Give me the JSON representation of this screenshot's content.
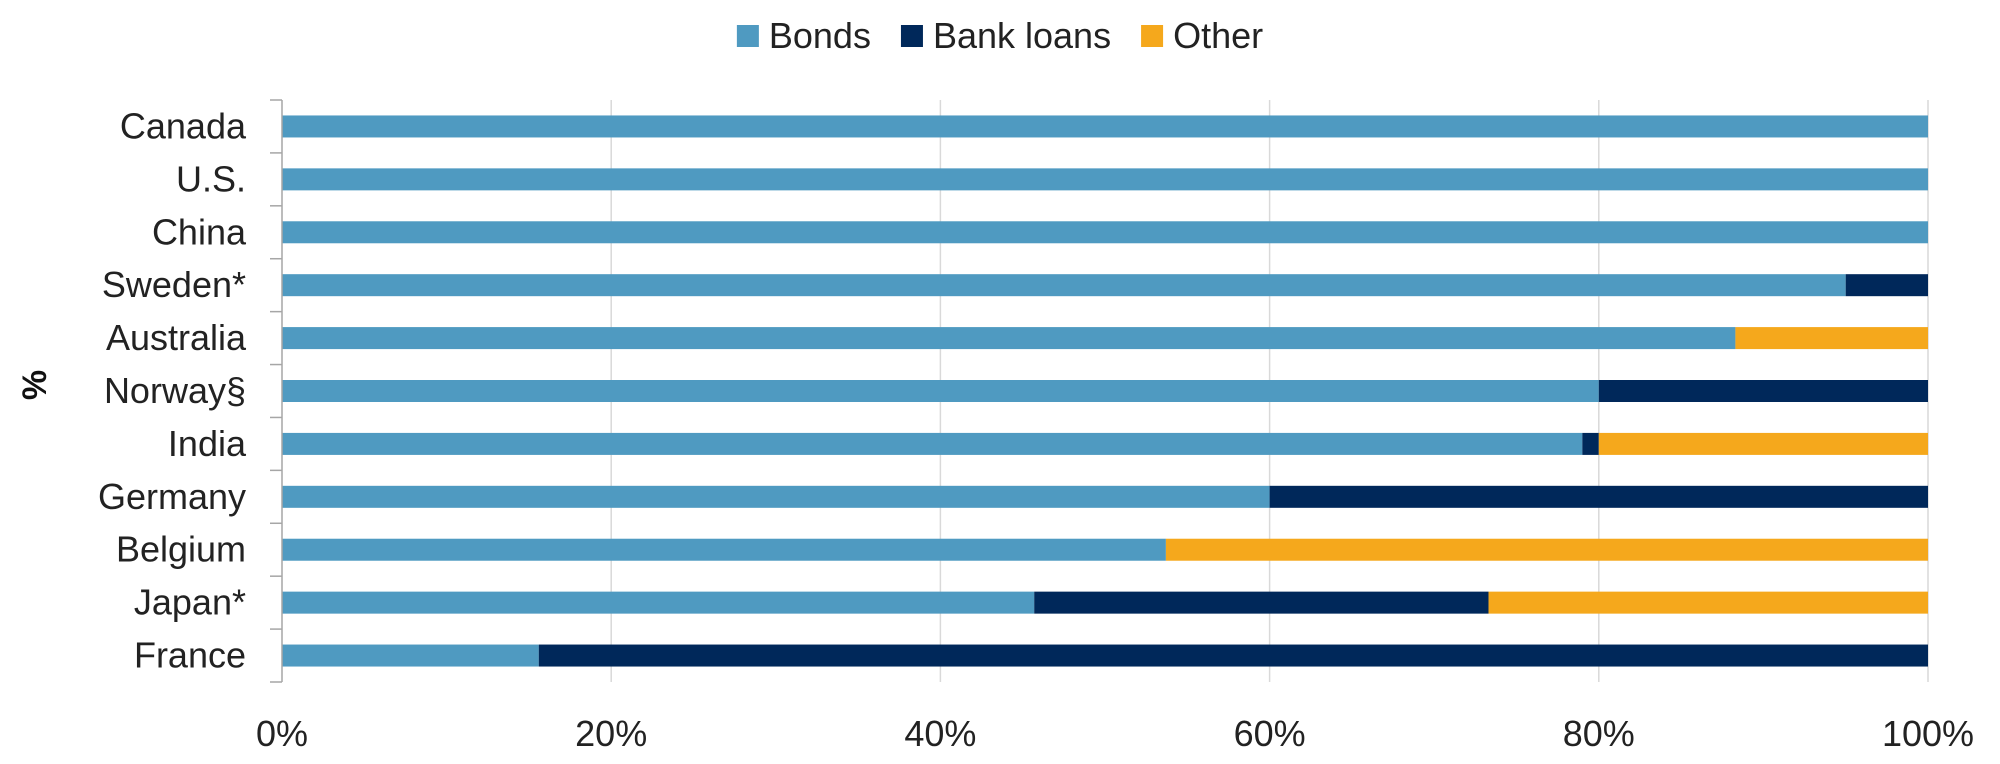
{
  "chart_data": {
    "type": "bar",
    "orientation": "horizontal",
    "stacked": true,
    "ylabel": "%",
    "categories": [
      "Canada",
      "U.S.",
      "China",
      "Sweden*",
      "Australia",
      "Norway§",
      "India",
      "Germany",
      "Belgium",
      "Japan*",
      "France"
    ],
    "series": [
      {
        "name": "Bonds",
        "color": "#4f9ac1",
        "values": [
          100,
          100,
          100,
          95,
          88.3,
          80,
          79,
          60,
          53.7,
          45.7,
          15.6
        ]
      },
      {
        "name": "Bank loans",
        "color": "#00285a",
        "values": [
          0,
          0,
          0,
          5,
          0,
          20,
          1,
          40,
          0,
          27.6,
          84.4
        ]
      },
      {
        "name": "Other",
        "color": "#f5a81c",
        "values": [
          0,
          0,
          0,
          0,
          11.7,
          0,
          20,
          0,
          46.3,
          26.7,
          0
        ]
      }
    ],
    "xlim": [
      0,
      100
    ],
    "xticks": [
      0,
      20,
      40,
      60,
      80,
      100
    ],
    "xtick_labels": [
      "0%",
      "20%",
      "40%",
      "60%",
      "80%",
      "100%"
    ],
    "grid": true,
    "legend_position": "top-center"
  }
}
